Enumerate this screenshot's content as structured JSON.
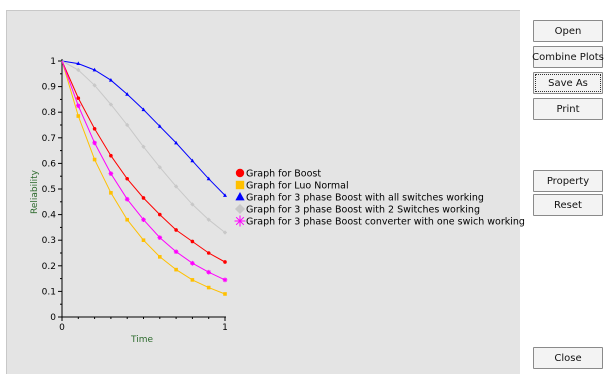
{
  "buttons": {
    "open": "Open",
    "combine_plots": "Combine Plots",
    "save_as": "Save As",
    "print": "Print",
    "property": "Property",
    "reset": "Reset",
    "close": "Close"
  },
  "chart_data": {
    "type": "line",
    "xlabel": "Time",
    "ylabel": "Reliability",
    "xlim": [
      0,
      1
    ],
    "ylim": [
      0,
      1
    ],
    "x_ticks": [
      "0",
      "1"
    ],
    "y_ticks": [
      "0",
      "0.1",
      "0.2",
      "0.3",
      "0.4",
      "0.5",
      "0.6",
      "0.7",
      "0.8",
      "0.9",
      "1"
    ],
    "grid": false,
    "legend_position": "right",
    "x": [
      0,
      0.1,
      0.2,
      0.3,
      0.4,
      0.5,
      0.6,
      0.7,
      0.8,
      0.9,
      1.0
    ],
    "series": [
      {
        "name": "Graph for Boost",
        "color": "#ff0000",
        "marker": "circle",
        "values": [
          1.0,
          0.855,
          0.735,
          0.63,
          0.54,
          0.465,
          0.4,
          0.34,
          0.295,
          0.25,
          0.215
        ]
      },
      {
        "name": "Graph for Luo Normal",
        "color": "#ffc000",
        "marker": "square",
        "values": [
          1.0,
          0.785,
          0.615,
          0.485,
          0.38,
          0.3,
          0.235,
          0.185,
          0.145,
          0.115,
          0.09
        ]
      },
      {
        "name": "Graph for 3 phase Boost with all switches working",
        "color": "#0000ff",
        "marker": "triangle",
        "values": [
          1.0,
          0.99,
          0.965,
          0.925,
          0.87,
          0.81,
          0.745,
          0.68,
          0.61,
          0.54,
          0.475
        ]
      },
      {
        "name": "Graph for 3 phase Boost with 2 Switches working",
        "color": "#c8c8c8",
        "marker": "diamond",
        "values": [
          1.0,
          0.965,
          0.905,
          0.83,
          0.75,
          0.665,
          0.585,
          0.51,
          0.44,
          0.38,
          0.33
        ]
      },
      {
        "name": "Graph for 3 phase Boost converter with one swich working",
        "color": "#ff00ff",
        "marker": "star",
        "values": [
          1.0,
          0.825,
          0.68,
          0.56,
          0.46,
          0.38,
          0.31,
          0.255,
          0.21,
          0.175,
          0.145
        ]
      }
    ]
  }
}
